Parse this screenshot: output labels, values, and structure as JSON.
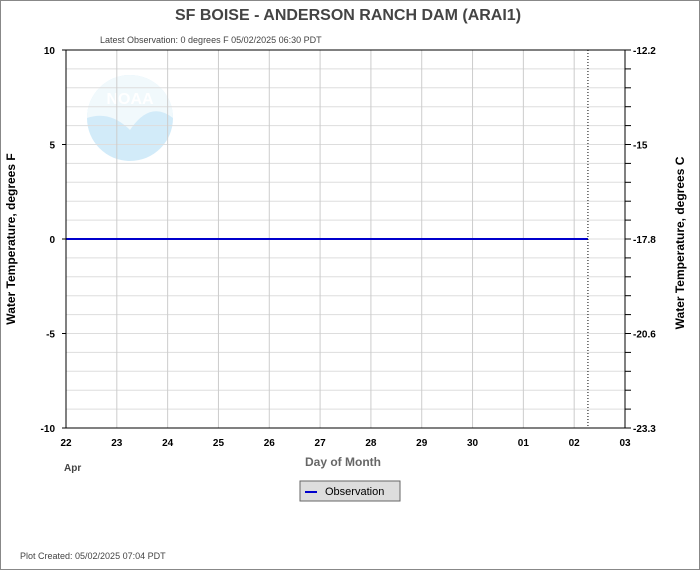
{
  "chart_data": {
    "type": "line",
    "title": "SF BOISE - ANDERSON RANCH DAM  (ARAI1)",
    "subtitle": "Latest Observation: 0 degrees F 05/02/2025 06:30 PDT",
    "xlabel": "Day of Month",
    "x_month_label": "Apr",
    "ylabel": "Water Temperature, degrees F",
    "y2label": "Water Temperature, degrees C",
    "x_tick_labels": [
      "22",
      "23",
      "24",
      "25",
      "26",
      "27",
      "28",
      "29",
      "30",
      "01",
      "02",
      "03"
    ],
    "ylim": [
      -10,
      10
    ],
    "y_ticks": [
      10,
      5,
      0,
      -5,
      -10
    ],
    "y2_tick_labels": [
      "-12.2",
      "-15",
      "-17.8",
      "-20.6",
      "-23.3"
    ],
    "grid": true,
    "legend_position": "bottom",
    "series": [
      {
        "name": "Observation",
        "color": "#0000cc",
        "x_start": "04/22",
        "x_end": "05/02 06:30",
        "values": [
          0,
          0
        ]
      }
    ],
    "latest_marker_x": "05/02 06:30",
    "footer": "Plot Created: 05/02/2025 07:04 PDT",
    "watermark": "NOAA"
  }
}
